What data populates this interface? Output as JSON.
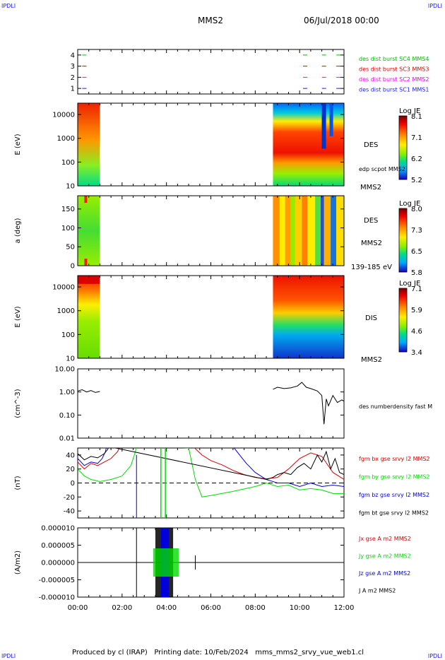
{
  "header": {
    "corner_left": "IPDLI",
    "corner_right": "IPDLI",
    "title": "MMS2",
    "date": "06/Jul/2018 00:00"
  },
  "footer": {
    "text": "Produced by cl (IRAP)   Printing date: 10/Feb/2024   mms_mms2_srvy_vue_web1.cl",
    "corner_left": "IPDLI",
    "corner_right": "IPDLI"
  },
  "colors": {
    "mms1": "#1a1aff",
    "mms2": "#ee00ee",
    "mms3": "#dd0000",
    "mms4": "#00bb00",
    "bx": "#dd0000",
    "by": "#00dd00",
    "bz": "#0000dd",
    "bt": "#000000"
  },
  "x_axis": {
    "range_hours": [
      0,
      12
    ],
    "ticks": [
      0,
      2,
      4,
      6,
      8,
      10,
      12
    ],
    "tick_labels": [
      "00:00",
      "02:00",
      "04:00",
      "06:00",
      "08:00",
      "10:00",
      "12:00"
    ]
  },
  "chart_data": [
    {
      "type": "scatter",
      "panel": "burst availability",
      "ylim": [
        0.5,
        4.5
      ],
      "yticks": [
        1,
        2,
        3,
        4
      ],
      "ytick_labels": [
        "1",
        "2",
        "3",
        "4"
      ],
      "series": [
        {
          "name": "des dist burst SC1 MMS1",
          "color_key": "mms1",
          "y": 1,
          "x_hours": [
            0.3,
            10.25,
            11.1,
            11.75
          ]
        },
        {
          "name": "des dist burst SC2 MMS2",
          "color_key": "mms2",
          "y": 2,
          "x_hours": [
            0.3,
            10.25,
            11.1,
            11.75
          ]
        },
        {
          "name": "des dist burst SC3 MMS3",
          "color_key": "mms3",
          "y": 3,
          "x_hours": [
            0.3,
            10.25,
            11.1,
            11.75
          ]
        },
        {
          "name": "des dist burst SC4 MMS4",
          "color_key": "mms4",
          "y": 4,
          "x_hours": [
            0.3,
            10.25,
            11.1,
            11.75
          ]
        }
      ]
    },
    {
      "type": "heatmap",
      "panel": "DES energy spectrogram",
      "ylabel": "E (eV)",
      "yscale": "log",
      "ylim": [
        10,
        30000
      ],
      "yticks": [
        10,
        100,
        1000,
        10000
      ],
      "ytick_labels": [
        "10",
        "100",
        "1000",
        "10000"
      ],
      "right_labels": [
        "DES",
        "MMS2"
      ],
      "overlay_label": "edp scpot MMS2",
      "colorbar": {
        "title": "Log JE",
        "range": [
          5.2,
          8.1
        ],
        "tick_labels": [
          "8.1",
          "7.1",
          "6.2",
          "5.2"
        ]
      },
      "data_intervals_hours": [
        [
          0,
          1.0
        ],
        [
          8.8,
          12
        ]
      ]
    },
    {
      "type": "heatmap",
      "panel": "DES pitch angle",
      "ylabel": "a (deg)",
      "ylim": [
        0,
        185
      ],
      "yticks": [
        0,
        50,
        100,
        150
      ],
      "ytick_labels": [
        "0",
        "50",
        "100",
        "150"
      ],
      "right_labels": [
        "DES",
        "MMS2",
        "139-185 eV"
      ],
      "colorbar": {
        "title": "Log JE",
        "range": [
          5.8,
          8.0
        ],
        "tick_labels": [
          "8.0",
          "7.3",
          "6.5",
          "5.8"
        ]
      },
      "data_intervals_hours": [
        [
          0,
          1.0
        ],
        [
          8.8,
          12
        ]
      ]
    },
    {
      "type": "heatmap",
      "panel": "DIS energy spectrogram",
      "ylabel": "E (eV)",
      "yscale": "log",
      "ylim": [
        10,
        30000
      ],
      "yticks": [
        10,
        100,
        1000,
        10000
      ],
      "ytick_labels": [
        "10",
        "100",
        "1000",
        "10000"
      ],
      "right_labels": [
        "DIS",
        "MMS2"
      ],
      "colorbar": {
        "title": "Log JE",
        "range": [
          3.4,
          7.1
        ],
        "tick_labels": [
          "7.1",
          "5.9",
          "4.6",
          "3.4"
        ]
      },
      "data_intervals_hours": [
        [
          0,
          1.0
        ],
        [
          8.8,
          12
        ]
      ]
    },
    {
      "type": "line",
      "panel": "electron density",
      "ylabel": "(cm^-3)",
      "yscale": "log",
      "ylim": [
        0.01,
        10
      ],
      "yticks": [
        0.01,
        0.1,
        1,
        10
      ],
      "ytick_labels": [
        "0.01",
        "0.10",
        "1.00",
        "10.00"
      ],
      "series": [
        {
          "name": "des numberdensity fast M",
          "color_key": "bt",
          "segments": [
            {
              "x": [
                0,
                0.2,
                0.4,
                0.6,
                0.8,
                1.0
              ],
              "y": [
                1.1,
                1.25,
                1.0,
                1.15,
                0.95,
                1.05
              ]
            },
            {
              "x": [
                8.8,
                9.0,
                9.3,
                9.6,
                9.9,
                10.1,
                10.3,
                10.5,
                10.8,
                11.0,
                11.1,
                11.2,
                11.3,
                11.5,
                11.7,
                11.9,
                12.0
              ],
              "y": [
                1.3,
                1.6,
                1.4,
                1.5,
                1.8,
                2.6,
                1.6,
                1.4,
                1.1,
                0.7,
                0.04,
                0.5,
                0.25,
                0.7,
                0.35,
                0.45,
                0.4
              ]
            }
          ]
        }
      ]
    },
    {
      "type": "line",
      "panel": "magnetic field",
      "ylabel": "(nT)",
      "ylim": [
        -50,
        50
      ],
      "yticks": [
        -40,
        -20,
        0,
        20,
        40
      ],
      "ytick_labels": [
        "-40",
        "-20",
        "0",
        "20",
        "40"
      ],
      "series": [
        {
          "name": "fgm bx gse srvy l2 MMS2",
          "color_key": "bx",
          "x": [
            0,
            0.3,
            0.6,
            0.9,
            1.2,
            1.5,
            1.8,
            1.9,
            5.2,
            5.6,
            6.0,
            6.5,
            7.0,
            7.5,
            8.0,
            8.5,
            9.0,
            9.5,
            10.0,
            10.5,
            11.0,
            11.5,
            12.0
          ],
          "y": [
            30,
            20,
            28,
            25,
            30,
            35,
            45,
            52,
            52,
            40,
            32,
            26,
            18,
            12,
            8,
            6,
            8,
            20,
            35,
            43,
            38,
            15,
            5
          ]
        },
        {
          "name": "fgm by gse srvy l2 MMS2",
          "color_key": "by",
          "x": [
            0,
            0.3,
            0.6,
            1.0,
            1.5,
            2.0,
            2.4,
            2.6,
            2.65,
            5.0,
            5.3,
            5.6,
            6.0,
            7.0,
            8.0,
            8.5,
            9.0,
            9.5,
            10.0,
            10.5,
            11.0,
            11.5,
            12.0
          ],
          "y": [
            20,
            10,
            5,
            2,
            5,
            10,
            25,
            45,
            55,
            50,
            5,
            -20,
            -18,
            -12,
            -5,
            0,
            -5,
            -3,
            -10,
            -8,
            -10,
            -15,
            -15
          ]
        },
        {
          "name": "fgm bz gse srvy l2 MMS2",
          "color_key": "bz",
          "x": [
            0,
            0.3,
            0.6,
            0.9,
            1.1,
            1.25,
            1.3,
            7.0,
            7.3,
            7.6,
            8.0,
            8.5,
            9.0,
            9.5,
            10.0,
            10.5,
            11.0,
            11.5,
            12.0
          ],
          "y": [
            35,
            25,
            30,
            28,
            35,
            45,
            52,
            52,
            40,
            28,
            15,
            5,
            0,
            0,
            -5,
            0,
            -5,
            -3,
            -5
          ]
        },
        {
          "name": "fgm bt gse srvy l2 MMS2",
          "color_key": "bt",
          "x": [
            0,
            0.3,
            0.6,
            0.9,
            1.2,
            1.35,
            1.4,
            8.5,
            8.8,
            9.0,
            9.3,
            9.6,
            9.9,
            10.2,
            10.5,
            10.8,
            11.0,
            11.2,
            11.4,
            11.6,
            11.8,
            12.0
          ],
          "y": [
            42,
            33,
            38,
            36,
            42,
            48,
            52,
            5,
            8,
            12,
            15,
            12,
            22,
            28,
            20,
            40,
            30,
            45,
            20,
            35,
            15,
            12
          ]
        }
      ]
    },
    {
      "type": "line",
      "panel": "current density",
      "ylabel": "(A/m2)",
      "ylim": [
        -1e-05,
        1e-05
      ],
      "yticks": [
        -1e-05,
        -5e-06,
        0,
        5e-06,
        1e-05
      ],
      "ytick_labels": [
        "-0.000010",
        "-0.000005",
        "0.000000",
        "0.000005",
        "0.000010"
      ],
      "series": [
        {
          "name": "Jx gse A m2 MMS2",
          "color_key": "bx"
        },
        {
          "name": "Jy gse A m2 MMS2",
          "color_key": "by"
        },
        {
          "name": "Jz gse A m2 MMS2",
          "color_key": "bz"
        },
        {
          "name": "J A m2 MMS2",
          "color_key": "bt"
        }
      ],
      "bursts_hours": [
        [
          3.4,
          3.7
        ],
        [
          3.7,
          4.2
        ],
        [
          4.2,
          4.55
        ]
      ]
    }
  ]
}
